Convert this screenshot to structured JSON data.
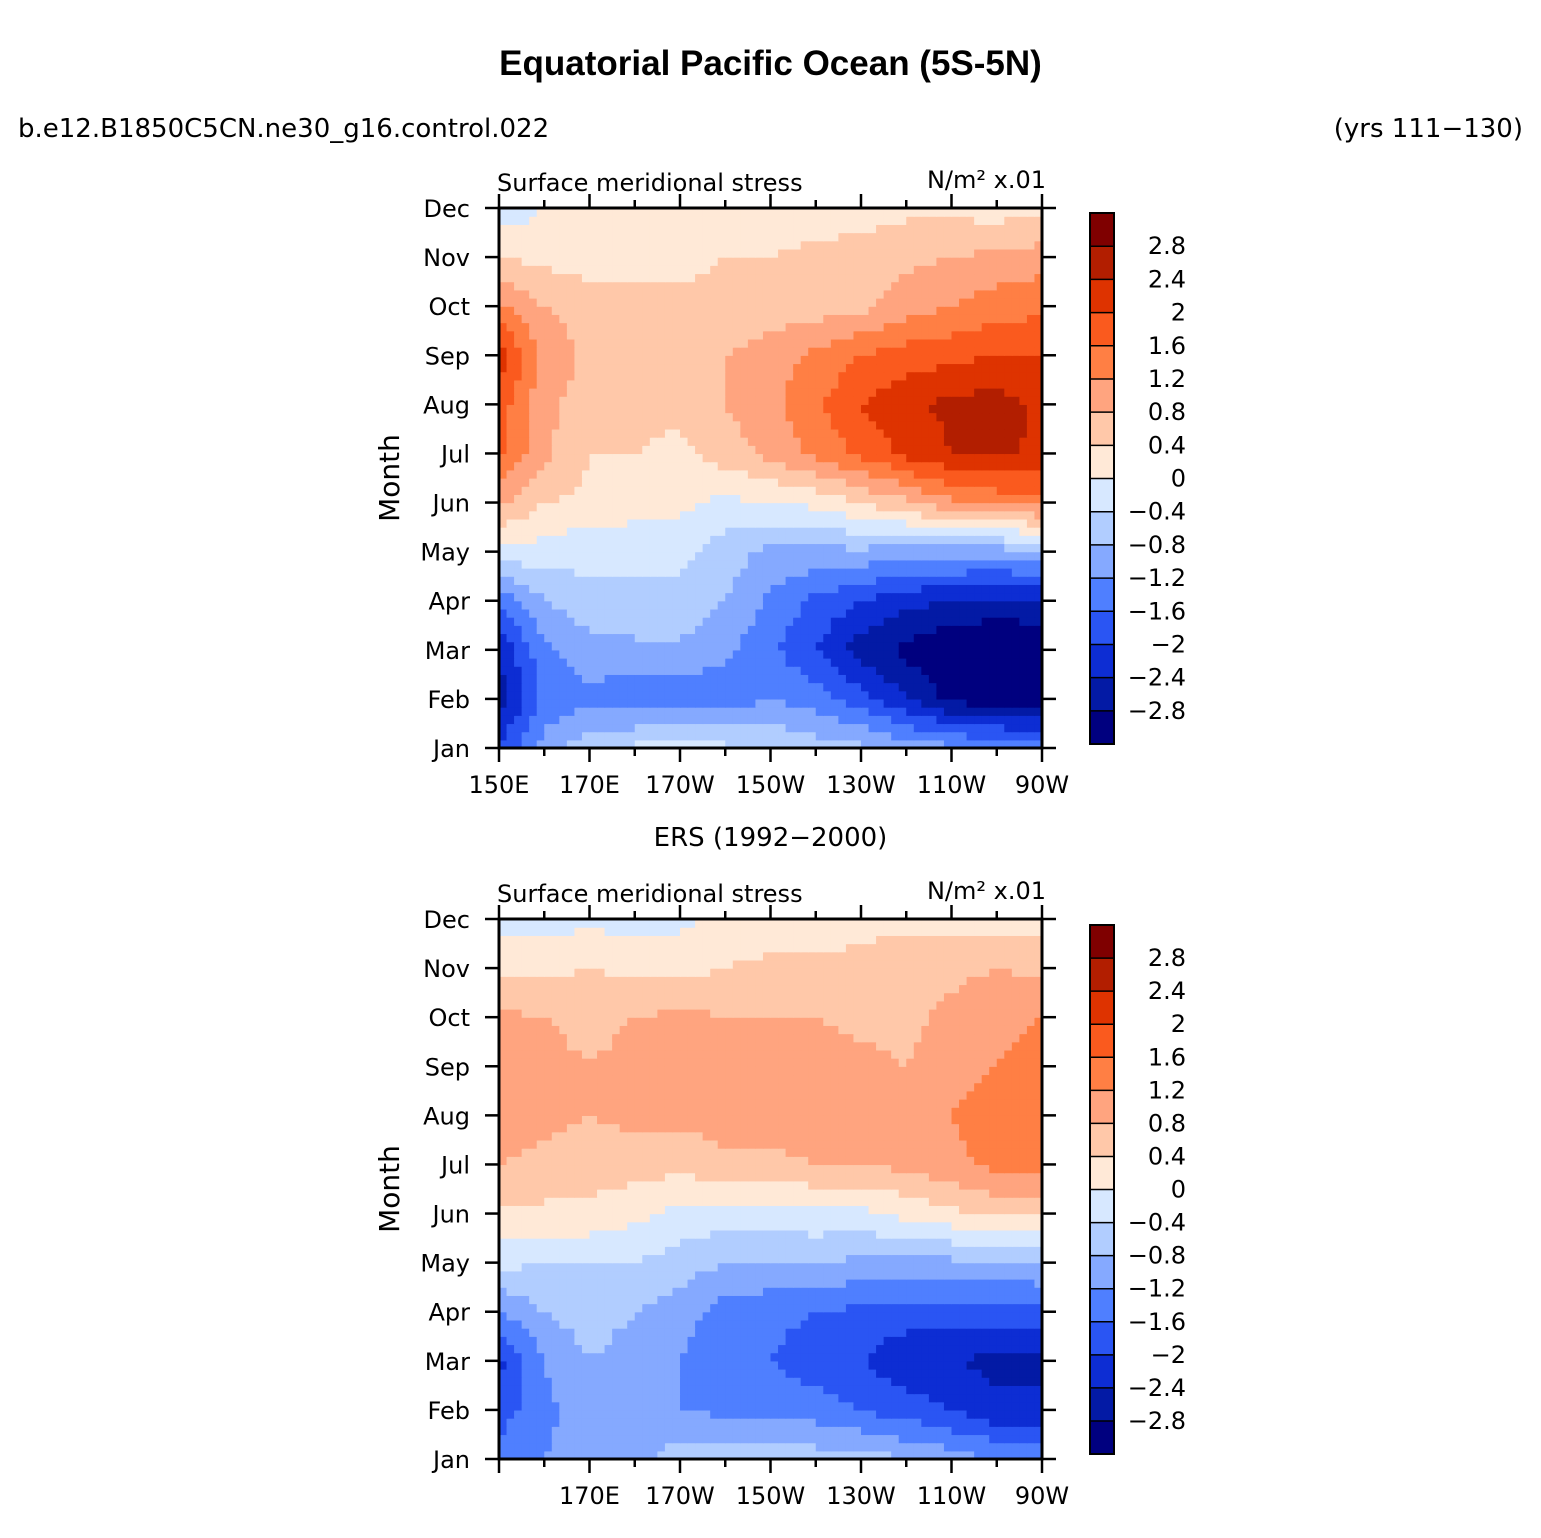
{
  "figure": {
    "title": "Equatorial Pacific Ocean (5S-5N)",
    "case_name": "b.e12.B1850C5CN.ne30_g16.control.022",
    "years": "(yrs 111−130)",
    "observations_title": "ERS (1992−2000)"
  },
  "colorbar": {
    "labels": [
      "2.8",
      "2.4",
      "2",
      "1.6",
      "1.2",
      "0.8",
      "0.4",
      "0",
      "−0.4",
      "−0.8",
      "−1.2",
      "−1.6",
      "−2",
      "−2.4",
      "−2.8"
    ],
    "levels": [
      2.8,
      2.4,
      2.0,
      1.6,
      1.2,
      0.8,
      0.4,
      0,
      -0.4,
      -0.8,
      -1.2,
      -1.6,
      -2.0,
      -2.4,
      -2.8
    ],
    "colors": [
      "#7f0000",
      "#b21e00",
      "#de3300",
      "#fa5a1e",
      "#ff7f44",
      "#ffa47f",
      "#ffc8a9",
      "#ffe9d7",
      "#d7e8ff",
      "#b1cdff",
      "#85a9ff",
      "#4f7fff",
      "#2a55f3",
      "#0d2dd3",
      "#031aa5",
      "#00007f"
    ]
  },
  "chart_data": [
    {
      "type": "heatmap",
      "title": "Surface meridional stress",
      "units": "N/m² x.01",
      "ylabel": "Month",
      "xlabel": "",
      "x_ticks": [
        "150E",
        "170E",
        "170W",
        "150W",
        "130W",
        "110W",
        "90W"
      ],
      "y_ticks": [
        "Jan",
        "Feb",
        "Mar",
        "Apr",
        "May",
        "Jun",
        "Jul",
        "Aug",
        "Sep",
        "Oct",
        "Nov",
        "Dec"
      ],
      "x_range": [
        150,
        270
      ],
      "y_range": [
        1,
        12
      ],
      "grid_x": [
        150,
        160,
        170,
        180,
        190,
        200,
        210,
        220,
        230,
        240,
        250,
        260,
        270
      ],
      "values": [
        [
          -2.0,
          -1.0,
          -0.5,
          -0.3,
          -0.2,
          -0.3,
          -0.4,
          -0.6,
          -0.7,
          -0.9,
          -1.1,
          -1.2,
          -1.3
        ],
        [
          -2.6,
          -1.5,
          -1.3,
          -1.5,
          -1.5,
          -1.5,
          -1.2,
          -1.4,
          -1.8,
          -2.4,
          -2.9,
          -3.1,
          -3.1
        ],
        [
          -2.4,
          -1.3,
          -1.0,
          -0.9,
          -0.9,
          -1.1,
          -1.5,
          -2.0,
          -2.6,
          -2.9,
          -3.2,
          -3.3,
          -3.3
        ],
        [
          -1.5,
          -0.8,
          -0.5,
          -0.5,
          -0.5,
          -0.8,
          -1.3,
          -1.7,
          -2.0,
          -2.3,
          -2.4,
          -2.5,
          -2.4
        ],
        [
          -0.1,
          -0.2,
          -0.3,
          -0.3,
          -0.3,
          -0.6,
          -0.9,
          -0.9,
          -0.9,
          -1.0,
          -1.0,
          -1.0,
          -0.9
        ],
        [
          0.9,
          0.4,
          0.3,
          0.2,
          0.1,
          -0.1,
          0.0,
          0.1,
          0.4,
          0.7,
          1.1,
          1.3,
          1.4
        ],
        [
          1.7,
          0.9,
          0.4,
          0.4,
          0.3,
          0.6,
          0.9,
          1.3,
          1.7,
          2.1,
          2.4,
          2.5,
          2.3
        ],
        [
          1.8,
          0.9,
          0.6,
          0.5,
          0.5,
          0.8,
          1.1,
          1.5,
          2.0,
          2.3,
          2.5,
          2.6,
          2.3
        ],
        [
          2.2,
          1.1,
          0.7,
          0.6,
          0.6,
          0.8,
          1.0,
          1.3,
          1.6,
          1.8,
          1.9,
          2.0,
          2.0
        ],
        [
          1.3,
          0.8,
          0.6,
          0.5,
          0.5,
          0.5,
          0.6,
          0.6,
          0.7,
          1.0,
          1.2,
          1.4,
          1.5
        ],
        [
          0.4,
          0.3,
          0.2,
          0.3,
          0.3,
          0.4,
          0.4,
          0.5,
          0.6,
          0.7,
          0.8,
          0.9,
          1.0
        ],
        [
          -0.3,
          0.0,
          0.1,
          0.1,
          0.1,
          0.2,
          0.2,
          0.2,
          0.2,
          0.3,
          0.3,
          0.2,
          0.3
        ]
      ]
    },
    {
      "type": "heatmap",
      "title": "Surface meridional stress",
      "units": "N/m² x.01",
      "ylabel": "Month",
      "xlabel": "",
      "x_ticks": [
        "170E",
        "170W",
        "150W",
        "130W",
        "110W",
        "90W"
      ],
      "y_ticks": [
        "Jan",
        "Feb",
        "Mar",
        "Apr",
        "May",
        "Jun",
        "Jul",
        "Aug",
        "Sep",
        "Oct",
        "Nov",
        "Dec"
      ],
      "x_range": [
        150,
        270
      ],
      "y_range": [
        1,
        12
      ],
      "grid_x": [
        150,
        160,
        170,
        180,
        190,
        200,
        210,
        220,
        230,
        240,
        250,
        260,
        270
      ],
      "values": [
        [
          -1.4,
          -1.2,
          -1.0,
          -0.9,
          -0.6,
          -0.5,
          -0.5,
          -0.6,
          -0.6,
          -0.8,
          -1.0,
          -1.2,
          -1.3
        ],
        [
          -1.8,
          -1.3,
          -1.0,
          -1.1,
          -1.2,
          -1.3,
          -1.4,
          -1.4,
          -1.6,
          -1.8,
          -2.0,
          -2.3,
          -2.3
        ],
        [
          -2.1,
          -1.2,
          -0.8,
          -1.0,
          -1.2,
          -1.5,
          -1.6,
          -1.8,
          -2.0,
          -2.3,
          -2.4,
          -2.5,
          -2.5
        ],
        [
          -1.2,
          -0.8,
          -0.6,
          -0.8,
          -1.0,
          -1.4,
          -1.5,
          -1.6,
          -1.7,
          -1.8,
          -1.8,
          -1.8,
          -1.7
        ],
        [
          -0.3,
          -0.4,
          -0.4,
          -0.4,
          -0.6,
          -0.8,
          -0.8,
          -0.8,
          -0.9,
          -0.9,
          -0.9,
          -0.9,
          -0.8
        ],
        [
          0.3,
          0.3,
          0.3,
          0.1,
          -0.1,
          -0.2,
          -0.2,
          -0.1,
          -0.1,
          0.1,
          0.3,
          0.5,
          0.5
        ],
        [
          0.8,
          0.7,
          0.6,
          0.6,
          0.5,
          0.7,
          0.7,
          0.8,
          0.8,
          0.9,
          1.1,
          1.3,
          1.3
        ],
        [
          1.0,
          0.9,
          0.8,
          0.9,
          0.9,
          1.0,
          1.0,
          1.0,
          0.9,
          0.9,
          1.2,
          1.4,
          1.4
        ],
        [
          1.2,
          0.9,
          0.8,
          0.9,
          1.0,
          0.9,
          0.9,
          1.0,
          0.9,
          0.8,
          1.0,
          1.2,
          1.3
        ],
        [
          0.9,
          0.8,
          0.7,
          0.8,
          0.9,
          0.8,
          0.8,
          0.8,
          0.7,
          0.7,
          0.9,
          1.1,
          1.2
        ],
        [
          0.3,
          0.3,
          0.4,
          0.3,
          0.3,
          0.4,
          0.5,
          0.5,
          0.5,
          0.6,
          0.7,
          0.8,
          0.7
        ],
        [
          -0.2,
          -0.2,
          -0.1,
          -0.2,
          -0.1,
          0.1,
          0.2,
          0.2,
          0.3,
          0.3,
          0.3,
          0.2,
          0.2
        ]
      ]
    }
  ]
}
